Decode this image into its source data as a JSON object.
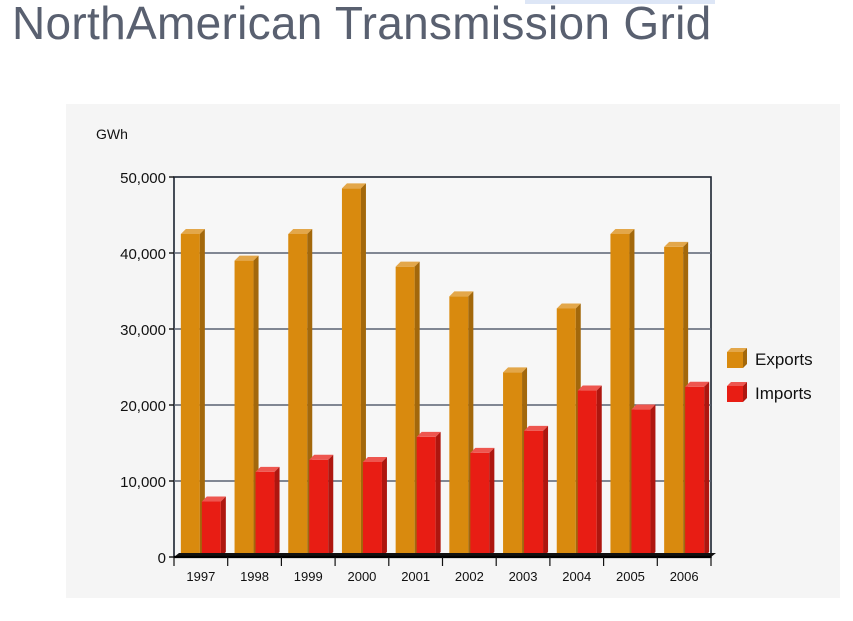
{
  "page": {
    "title": "NorthAmerican Transmission Grid"
  },
  "chart_data": {
    "type": "bar",
    "ylabel": "GWh",
    "categories": [
      "1997",
      "1998",
      "1999",
      "2000",
      "2001",
      "2002",
      "2003",
      "2004",
      "2005",
      "2006"
    ],
    "series": [
      {
        "name": "Exports",
        "color": "#d98a0e",
        "values": [
          42500,
          39000,
          42500,
          48500,
          38200,
          34300,
          24300,
          32700,
          42500,
          40800
        ]
      },
      {
        "name": "Imports",
        "color": "#e81d14",
        "values": [
          7300,
          11200,
          12800,
          12500,
          15800,
          13700,
          16600,
          21900,
          19400,
          22400
        ]
      }
    ],
    "yticks": [
      "50,000",
      "40,000",
      "30,000",
      "20,000",
      "10,000",
      "0"
    ],
    "ylim": [
      0,
      50000
    ],
    "grid": true,
    "legend": "right"
  }
}
